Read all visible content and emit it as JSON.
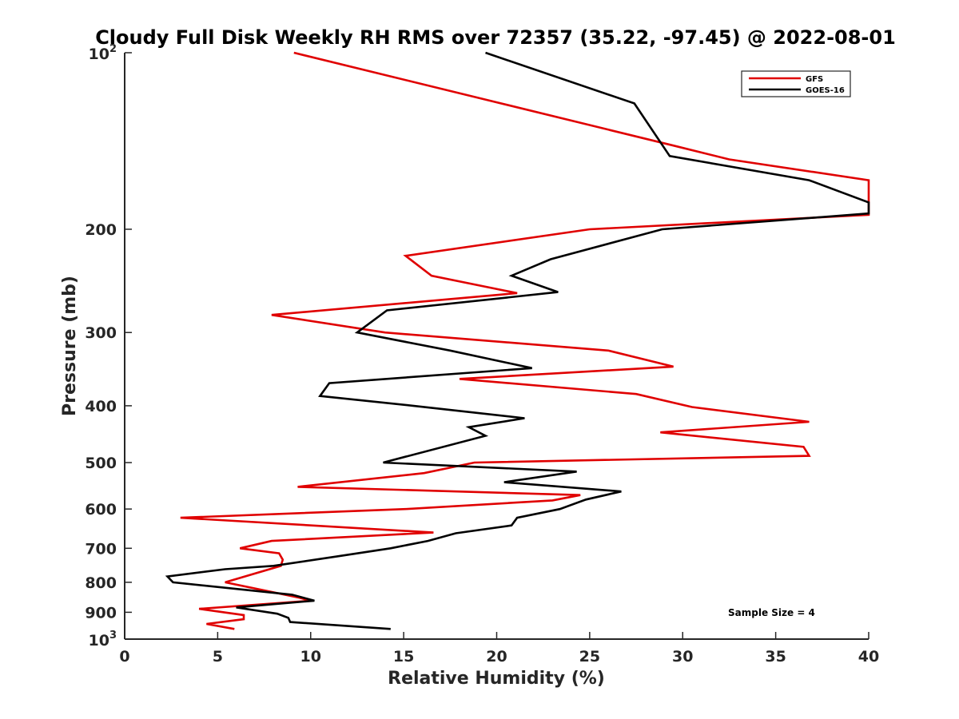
{
  "chart_data": {
    "type": "line",
    "title": "Cloudy Full Disk Weekly RH RMS over 72357 (35.22, -97.45) @ 2022-08-01",
    "xlabel": "Relative Humidity (%)",
    "ylabel": "Pressure (mb)",
    "xlim": [
      0,
      40
    ],
    "ylim": [
      100,
      1000
    ],
    "y_scale": "log",
    "y_reversed": true,
    "grid": false,
    "legend_position": "top-right",
    "x_ticks": [
      "0",
      "5",
      "10",
      "15",
      "20",
      "25",
      "30",
      "35",
      "40"
    ],
    "y_ticks": [
      {
        "value": 200,
        "label": "200"
      },
      {
        "value": 300,
        "label": "300"
      },
      {
        "value": 400,
        "label": "400"
      },
      {
        "value": 500,
        "label": "500"
      },
      {
        "value": 600,
        "label": "600"
      },
      {
        "value": 700,
        "label": "700"
      },
      {
        "value": 800,
        "label": "800"
      },
      {
        "value": 900,
        "label": "900"
      }
    ],
    "y_end_ticks": [
      {
        "value": 100,
        "base": "10",
        "exp": "2"
      },
      {
        "value": 1000,
        "base": "10",
        "exp": "3"
      }
    ],
    "series": [
      {
        "name": "GFS",
        "color": "#e00000",
        "points": [
          [
            9.1,
            100
          ],
          [
            29.5,
            144
          ],
          [
            32.5,
            152
          ],
          [
            40,
            165
          ],
          [
            40,
            189
          ],
          [
            25,
            200
          ],
          [
            15.1,
            222
          ],
          [
            16.5,
            240
          ],
          [
            21.1,
            257
          ],
          [
            7.9,
            280
          ],
          [
            14.0,
            300
          ],
          [
            26.0,
            322
          ],
          [
            29.5,
            343
          ],
          [
            18.0,
            360
          ],
          [
            27.5,
            382
          ],
          [
            30.5,
            402
          ],
          [
            36.8,
            426
          ],
          [
            28.8,
            444
          ],
          [
            36.5,
            470
          ],
          [
            36.8,
            487
          ],
          [
            18.8,
            500
          ],
          [
            16.1,
            521
          ],
          [
            9.3,
            550
          ],
          [
            24.5,
            568
          ],
          [
            23.0,
            580
          ],
          [
            15.1,
            600
          ],
          [
            3.0,
            621
          ],
          [
            16.6,
            658
          ],
          [
            7.9,
            680
          ],
          [
            6.2,
            700
          ],
          [
            8.3,
            714
          ],
          [
            8.5,
            732
          ],
          [
            8.4,
            750
          ],
          [
            5.4,
            800
          ],
          [
            9.4,
            850
          ],
          [
            10.0,
            860
          ],
          [
            4.0,
            888
          ],
          [
            6.4,
            910
          ],
          [
            6.4,
            925
          ],
          [
            4.4,
            942
          ],
          [
            5.9,
            961
          ]
        ]
      },
      {
        "name": "GOES-16",
        "color": "#000000",
        "points": [
          [
            19.4,
            100
          ],
          [
            27.4,
            122
          ],
          [
            29.3,
            150
          ],
          [
            36.8,
            165
          ],
          [
            40,
            180
          ],
          [
            40,
            188
          ],
          [
            28.9,
            200
          ],
          [
            22.9,
            225
          ],
          [
            20.8,
            240
          ],
          [
            23.3,
            256
          ],
          [
            14.1,
            275
          ],
          [
            12.5,
            300
          ],
          [
            17.5,
            322
          ],
          [
            21.9,
            345
          ],
          [
            11.0,
            366
          ],
          [
            10.5,
            385
          ],
          [
            15.5,
            400
          ],
          [
            21.5,
            420
          ],
          [
            18.5,
            435
          ],
          [
            19.4,
            450
          ],
          [
            13.9,
            500
          ],
          [
            24.3,
            518
          ],
          [
            20.4,
            540
          ],
          [
            26.7,
            560
          ],
          [
            24.8,
            578
          ],
          [
            23.4,
            600
          ],
          [
            21.1,
            621
          ],
          [
            20.8,
            640
          ],
          [
            17.8,
            660
          ],
          [
            16.3,
            680
          ],
          [
            14.3,
            700
          ],
          [
            11.5,
            722
          ],
          [
            8.0,
            750
          ],
          [
            5.4,
            760
          ],
          [
            2.3,
            782
          ],
          [
            2.6,
            800
          ],
          [
            9.0,
            840
          ],
          [
            10.2,
            860
          ],
          [
            6.0,
            883
          ],
          [
            8.2,
            905
          ],
          [
            8.8,
            920
          ],
          [
            8.9,
            935
          ],
          [
            14.3,
            961
          ]
        ]
      }
    ],
    "legend": [
      {
        "label": "GFS",
        "color": "#e00000"
      },
      {
        "label": "GOES-16",
        "color": "#000000"
      }
    ],
    "annotation": "Sample Size = 4"
  }
}
